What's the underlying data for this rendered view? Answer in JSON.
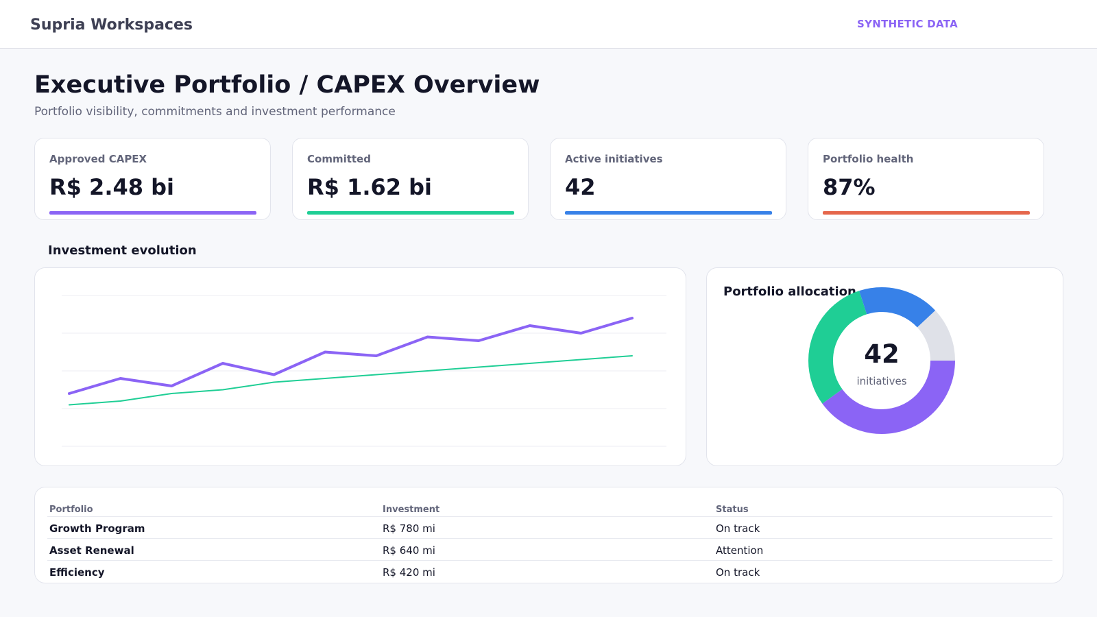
{
  "header": {
    "brand": "Supria Workspaces",
    "badge": "SYNTHETIC DATA"
  },
  "page": {
    "title": "Executive Portfolio / CAPEX Overview",
    "subtitle": "Portfolio visibility, commitments and investment performance"
  },
  "kpis": [
    {
      "label": "Approved CAPEX",
      "value": "R$ 2.48 bi",
      "accent": "#8b64f5"
    },
    {
      "label": "Committed",
      "value": "R$ 1.62 bi",
      "accent": "#1fce95"
    },
    {
      "label": "Active initiatives",
      "value": "42",
      "accent": "#3781e8"
    },
    {
      "label": "Portfolio health",
      "value": "87%",
      "accent": "#e5674c"
    }
  ],
  "investment_section": {
    "title": "Investment evolution"
  },
  "chart_data": [
    {
      "type": "line",
      "x": [
        1,
        2,
        3,
        4,
        5,
        6,
        7,
        8,
        9,
        10,
        11,
        12
      ],
      "series": [
        {
          "color": "#8b64f5",
          "values": [
            14,
            18,
            16,
            22,
            19,
            25,
            24,
            29,
            28,
            32,
            30,
            34
          ]
        },
        {
          "color": "#1fce95",
          "values": [
            11,
            12,
            14,
            15,
            17,
            18,
            19,
            20,
            21,
            22,
            23,
            24
          ]
        }
      ],
      "ylim": [
        0,
        40
      ],
      "grid": true
    },
    {
      "type": "pie",
      "title": "Portfolio allocation",
      "slices": [
        {
          "value": 40,
          "color": "#8b64f5"
        },
        {
          "value": 30,
          "color": "#1fce95"
        },
        {
          "value": 18,
          "color": "#3781e8"
        },
        {
          "value": 12,
          "color": "#dfe1e8"
        }
      ],
      "center_value": "42",
      "center_label": "initiatives"
    }
  ],
  "table": {
    "headers": [
      "Portfolio",
      "Investment",
      "Status"
    ],
    "rows": [
      [
        "Growth Program",
        "R$ 780 mi",
        "On track"
      ],
      [
        "Asset Renewal",
        "R$ 640 mi",
        "Attention"
      ],
      [
        "Efficiency",
        "R$ 420 mi",
        "On track"
      ]
    ]
  }
}
